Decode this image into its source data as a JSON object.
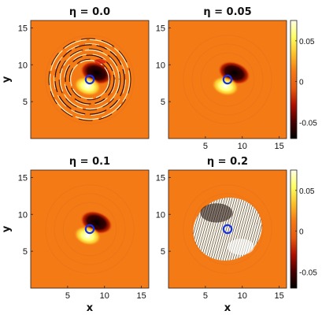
{
  "figure": {
    "xlabel": "x",
    "ylabel": "y",
    "eta_symbol": "η"
  },
  "colors": {
    "background_field": "#f47a16",
    "colormap": [
      "#000000",
      "#4a0000",
      "#b01000",
      "#e85a10",
      "#f47a16",
      "#fbc02a",
      "#ffff60",
      "#ffffe8"
    ],
    "vortex_marker": "#1432e6"
  },
  "colorbar": {
    "range": [
      -0.07,
      0.075
    ],
    "tick_values": [
      0.05,
      0,
      -0.05
    ],
    "tick_labels": [
      "0.05",
      "0",
      "-0.05"
    ]
  },
  "chart_data": [
    {
      "type": "heatmap",
      "title": "η = 0.0",
      "eta": 0.0,
      "xlim": [
        0,
        16
      ],
      "ylim": [
        0,
        16
      ],
      "xticks": [
        5,
        10,
        15
      ],
      "yticks": [
        5,
        10,
        15
      ],
      "vortex_center": [
        8,
        8
      ],
      "features": "concentric ripple rings around vortex, red patch near top",
      "show_xticks": false,
      "show_yticks": true,
      "show_xlabel": false,
      "show_ylabel": true,
      "show_colorbar": false
    },
    {
      "type": "heatmap",
      "title": "η = 0.05",
      "eta": 0.05,
      "xlim": [
        0,
        16
      ],
      "ylim": [
        0,
        16
      ],
      "xticks": [
        5,
        10,
        15
      ],
      "yticks": [
        5,
        10,
        15
      ],
      "vortex_center": [
        8,
        8
      ],
      "features": "smooth dipole, faint circular rings",
      "show_xticks": true,
      "show_yticks": true,
      "show_xlabel": false,
      "show_ylabel": false,
      "show_colorbar": true
    },
    {
      "type": "heatmap",
      "title": "η = 0.1",
      "eta": 0.1,
      "xlim": [
        0,
        16
      ],
      "ylim": [
        0,
        16
      ],
      "xticks": [
        5,
        10,
        15
      ],
      "yticks": [
        5,
        10,
        15
      ],
      "vortex_center": [
        8,
        8
      ],
      "features": "smooth dipole",
      "show_xticks": true,
      "show_yticks": true,
      "show_xlabel": true,
      "show_ylabel": true,
      "show_colorbar": false
    },
    {
      "type": "heatmap",
      "title": "η = 0.2",
      "eta": 0.2,
      "xlim": [
        0,
        16
      ],
      "ylim": [
        0,
        16
      ],
      "xticks": [
        5,
        10,
        15
      ],
      "yticks": [
        5,
        10,
        15
      ],
      "vortex_center": [
        8,
        8
      ],
      "features": "noisy hatched disk around vortex",
      "show_xticks": true,
      "show_yticks": true,
      "show_xlabel": true,
      "show_ylabel": false,
      "show_colorbar": true
    }
  ]
}
